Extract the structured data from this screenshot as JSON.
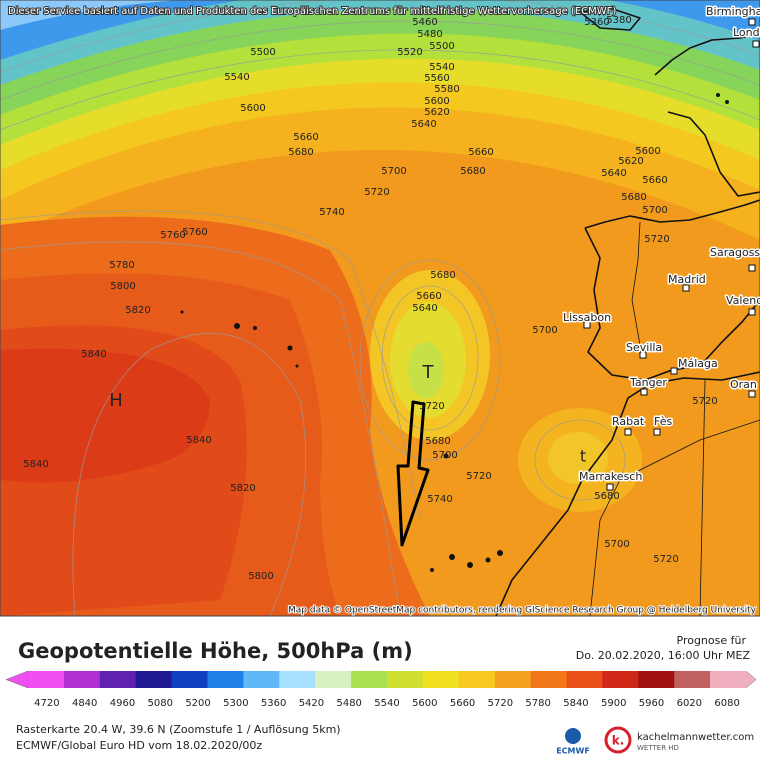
{
  "header": {
    "notice": "Dieser Service basiert auf Daten und Produkten des Europäischen Zentrums für mittelfristige Wettervorhersage (ECMWF)"
  },
  "map": {
    "contour_labels": [
      5460,
      5480,
      5500,
      5520,
      5540,
      5560,
      5580,
      5600,
      5620,
      5640,
      5500,
      5540,
      5600,
      5660,
      5680,
      5700,
      5720,
      5740,
      5760,
      5760,
      5780,
      5800,
      5820,
      5840,
      5840,
      5820,
      5840,
      5800,
      5660,
      5680,
      5600,
      5620,
      5640,
      5660,
      5680,
      5700,
      5720,
      5680,
      5660,
      5640,
      5700,
      5720,
      5680,
      5700,
      5720,
      5740,
      5720,
      5680,
      5700,
      5720,
      5360,
      5380
    ],
    "pressure_centers": [
      "H",
      "T",
      "t"
    ],
    "cities": [
      "Birmingham",
      "Lond",
      "Saragoss",
      "Madrid",
      "Valenc",
      "Lissabon",
      "Sevilla",
      "Málaga",
      "Tanger",
      "Oran",
      "Rabat",
      "Fès",
      "Marrakesch"
    ],
    "attribution": "Map data © OpenStreetMap contributors, rendering GIScience Research Group @ Heidelberg University"
  },
  "legend": {
    "title": "Geopotentielle Höhe, 500hPa (m)",
    "forecast_label": "Prognose für",
    "forecast_time": "Do. 20.02.2020, 16:00 Uhr MEZ",
    "colorbar_ticks": [
      4720,
      4840,
      4960,
      5080,
      5200,
      5300,
      5360,
      5420,
      5480,
      5540,
      5600,
      5660,
      5720,
      5780,
      5840,
      5900,
      5960,
      6020,
      6080
    ]
  },
  "footer": {
    "line1": "Rasterkarte 20.4 W, 39.6 N (Zoomstufe 1 / Auflösung 5km)",
    "line2": "ECMWF/Global Euro HD vom 18.02.2020/00z",
    "logos": [
      "ECMWF",
      "kachelmannwetter.com",
      "WETTER HD"
    ]
  }
}
